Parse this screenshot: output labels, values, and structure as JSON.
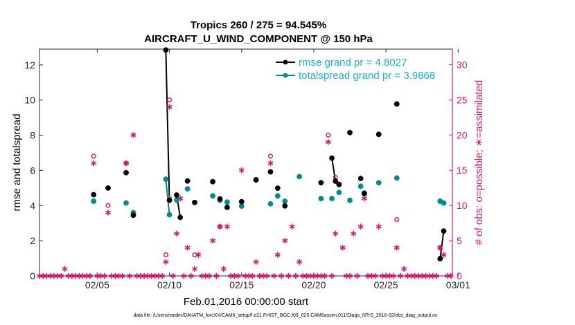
{
  "colors": {
    "rmse": "#000000",
    "spread": "#008b8b",
    "obs": "#d9176a"
  },
  "figure": {
    "title_line1": "Tropics 260 / 275 = 94.545%",
    "title_line2": "AIRCRAFT_U_WIND_COMPONENT @ 150 hPa",
    "footnote": "data file: /Users/raeder/DAI/ATM_forcXX/CAM6_setup/f.e21.FHIST_BGC.f09_025.CAM6assim.011/Diags_NTrS_2016-02/obs_diag_output.nc"
  },
  "chart_data": {
    "type": "line",
    "xlabel": "Feb.01,2016 00:00:00 start",
    "ylabel_left": "rmse and totalspread",
    "ylabel_right": "# of obs: o=possible; ∗=assimilated",
    "xlim": [
      1,
      29.6
    ],
    "ylim_left": [
      0,
      12.9
    ],
    "ylim_right": [
      0,
      32.2
    ],
    "x_ticks": [
      5,
      10,
      15,
      20,
      25,
      30
    ],
    "x_tick_labels": [
      "02/05",
      "02/10",
      "02/15",
      "02/20",
      "02/25",
      "03/01"
    ],
    "y_ticks_left": [
      0,
      2,
      4,
      6,
      8,
      10,
      12
    ],
    "y_ticks_right": [
      0,
      5,
      10,
      15,
      20,
      25,
      30
    ],
    "legend": [
      {
        "label": "rmse grand pr = 4.8027",
        "color": "#000000"
      },
      {
        "label": "totalspread grand pr = 3.9868",
        "color": "#008b8b"
      }
    ],
    "series": [
      {
        "name": "rmse grand pr = 4.8027",
        "axis": "left",
        "points": [
          [
            4.75,
            4.62
          ],
          [
            5.75,
            5.0
          ],
          [
            7.0,
            5.87
          ],
          [
            7.5,
            3.45
          ],
          [
            9.75,
            12.85
          ],
          [
            10.0,
            4.3
          ],
          [
            10.5,
            4.6
          ],
          [
            10.75,
            3.33
          ],
          [
            11.25,
            5.4
          ],
          [
            11.75,
            4.18
          ],
          [
            13.0,
            5.36
          ],
          [
            13.5,
            4.38
          ],
          [
            14.0,
            3.9
          ],
          [
            15.0,
            4.22
          ],
          [
            16.0,
            5.47
          ],
          [
            17.0,
            5.92
          ],
          [
            17.5,
            4.99
          ],
          [
            18.0,
            3.98
          ],
          [
            20.5,
            5.3
          ],
          [
            21.25,
            6.7
          ],
          [
            21.5,
            5.39
          ],
          [
            21.75,
            5.2
          ],
          [
            22.5,
            8.15
          ],
          [
            23.25,
            5.54
          ],
          [
            23.5,
            4.68
          ],
          [
            24.5,
            8.05
          ],
          [
            25.75,
            9.78
          ],
          [
            28.75,
            0.98
          ],
          [
            29.0,
            2.55
          ]
        ],
        "segments": [
          [
            [
              9.75,
              12.85
            ],
            [
              10.0,
              4.3
            ]
          ],
          [
            [
              10.5,
              4.6
            ],
            [
              10.75,
              3.33
            ]
          ],
          [
            [
              21.25,
              6.7
            ],
            [
              21.5,
              5.39
            ]
          ],
          [
            [
              21.5,
              5.39
            ],
            [
              21.75,
              5.2
            ]
          ],
          [
            [
              28.75,
              0.98
            ],
            [
              29.0,
              2.55
            ]
          ]
        ]
      },
      {
        "name": "totalspread grand pr = 3.9868",
        "axis": "left",
        "points": [
          [
            4.75,
            4.25
          ],
          [
            7.0,
            4.15
          ],
          [
            7.5,
            3.6
          ],
          [
            9.75,
            5.5
          ],
          [
            10.0,
            3.48
          ],
          [
            10.5,
            4.32
          ],
          [
            11.25,
            4.95
          ],
          [
            13.0,
            4.55
          ],
          [
            13.5,
            4.3
          ],
          [
            14.0,
            4.2
          ],
          [
            15.0,
            3.97
          ],
          [
            16.0,
            5.45
          ],
          [
            17.0,
            4.1
          ],
          [
            17.5,
            4.55
          ],
          [
            18.0,
            4.25
          ],
          [
            19.0,
            5.65
          ],
          [
            20.5,
            4.4
          ],
          [
            21.25,
            4.4
          ],
          [
            21.75,
            4.75
          ],
          [
            22.5,
            4.3
          ],
          [
            23.25,
            5.1
          ],
          [
            23.5,
            4.72
          ],
          [
            24.5,
            5.3
          ],
          [
            25.75,
            5.57
          ],
          [
            28.75,
            4.25
          ],
          [
            29.0,
            4.15
          ]
        ],
        "segments": [
          [
            [
              9.75,
              5.5
            ],
            [
              10.0,
              3.48
            ]
          ],
          [
            [
              28.75,
              4.25
            ],
            [
              29.0,
              4.15
            ]
          ]
        ]
      },
      {
        "name": "possible",
        "axis": "right",
        "points": [
          [
            4.75,
            17
          ],
          [
            5.75,
            10
          ],
          [
            7.0,
            16
          ],
          [
            9.75,
            3
          ],
          [
            10.0,
            25
          ],
          [
            11.75,
            3
          ],
          [
            13.5,
            7
          ],
          [
            17.0,
            17
          ],
          [
            21.0,
            20
          ],
          [
            21.5,
            14
          ],
          [
            25.75,
            8
          ],
          [
            28.75,
            4
          ]
        ]
      },
      {
        "name": "assimilated",
        "axis": "right",
        "points": [
          [
            4.75,
            16
          ],
          [
            5.75,
            9
          ],
          [
            7.0,
            16
          ],
          [
            7.5,
            20
          ],
          [
            9.75,
            2
          ],
          [
            10.0,
            24
          ],
          [
            10.0,
            11
          ],
          [
            10.5,
            6
          ],
          [
            10.75,
            11
          ],
          [
            11.25,
            4
          ],
          [
            11.75,
            1
          ],
          [
            12.0,
            3
          ],
          [
            13.0,
            5
          ],
          [
            13.5,
            7
          ],
          [
            13.75,
            1
          ],
          [
            14.0,
            7
          ],
          [
            15.0,
            15
          ],
          [
            16.0,
            2
          ],
          [
            17.0,
            16
          ],
          [
            17.5,
            3
          ],
          [
            18.0,
            5
          ],
          [
            18.5,
            7
          ],
          [
            19.0,
            2
          ],
          [
            21.0,
            19
          ],
          [
            21.5,
            6
          ],
          [
            21.75,
            13
          ],
          [
            22.0,
            4
          ],
          [
            22.75,
            6
          ],
          [
            23.25,
            7
          ],
          [
            23.5,
            11
          ],
          [
            24.5,
            7
          ],
          [
            25.75,
            4
          ],
          [
            26.25,
            1
          ],
          [
            28.75,
            4
          ],
          [
            29.0,
            3
          ],
          [
            1.0,
            0
          ],
          [
            1.25,
            0
          ],
          [
            1.5,
            0
          ],
          [
            1.75,
            0
          ],
          [
            2.0,
            0
          ],
          [
            2.25,
            0
          ],
          [
            2.5,
            0
          ],
          [
            2.75,
            1
          ],
          [
            3.0,
            0
          ],
          [
            3.25,
            0
          ],
          [
            3.5,
            0
          ],
          [
            3.75,
            0
          ],
          [
            4.0,
            0
          ],
          [
            4.25,
            0
          ],
          [
            4.5,
            0
          ],
          [
            5.0,
            0
          ],
          [
            5.25,
            0
          ],
          [
            5.5,
            0
          ],
          [
            6.0,
            0
          ],
          [
            6.25,
            0
          ],
          [
            6.5,
            0
          ],
          [
            6.75,
            0
          ],
          [
            7.25,
            0
          ],
          [
            7.75,
            0
          ],
          [
            8.0,
            0
          ],
          [
            8.25,
            0
          ],
          [
            8.5,
            0
          ],
          [
            8.75,
            0
          ],
          [
            9.0,
            0
          ],
          [
            9.25,
            0
          ],
          [
            9.5,
            0
          ],
          [
            10.25,
            0
          ],
          [
            11.0,
            0
          ],
          [
            11.5,
            0
          ],
          [
            12.25,
            0
          ],
          [
            12.5,
            0
          ],
          [
            12.75,
            0
          ],
          [
            13.25,
            0
          ],
          [
            14.25,
            0
          ],
          [
            14.5,
            0
          ],
          [
            14.75,
            0
          ],
          [
            15.25,
            0
          ],
          [
            15.5,
            0
          ],
          [
            15.75,
            0
          ],
          [
            16.25,
            0
          ],
          [
            16.5,
            0
          ],
          [
            16.75,
            0
          ],
          [
            17.25,
            0
          ],
          [
            17.75,
            0
          ],
          [
            18.25,
            0
          ],
          [
            18.75,
            0
          ],
          [
            19.25,
            0
          ],
          [
            19.5,
            0
          ],
          [
            19.75,
            0
          ],
          [
            20.0,
            0
          ],
          [
            20.25,
            0
          ],
          [
            20.5,
            0
          ],
          [
            20.75,
            0
          ],
          [
            21.25,
            0
          ],
          [
            22.25,
            0
          ],
          [
            22.5,
            0
          ],
          [
            23.0,
            0
          ],
          [
            23.75,
            0
          ],
          [
            24.0,
            0
          ],
          [
            24.25,
            0
          ],
          [
            24.75,
            0
          ],
          [
            25.0,
            0
          ],
          [
            25.25,
            0
          ],
          [
            25.5,
            0
          ],
          [
            26.0,
            0
          ],
          [
            26.5,
            0
          ],
          [
            26.75,
            0
          ],
          [
            27.0,
            0
          ],
          [
            27.25,
            0
          ],
          [
            27.5,
            0
          ],
          [
            27.75,
            0
          ],
          [
            28.0,
            0
          ],
          [
            28.25,
            0
          ],
          [
            28.5,
            0
          ],
          [
            29.25,
            0
          ],
          [
            29.5,
            0
          ]
        ]
      }
    ]
  }
}
